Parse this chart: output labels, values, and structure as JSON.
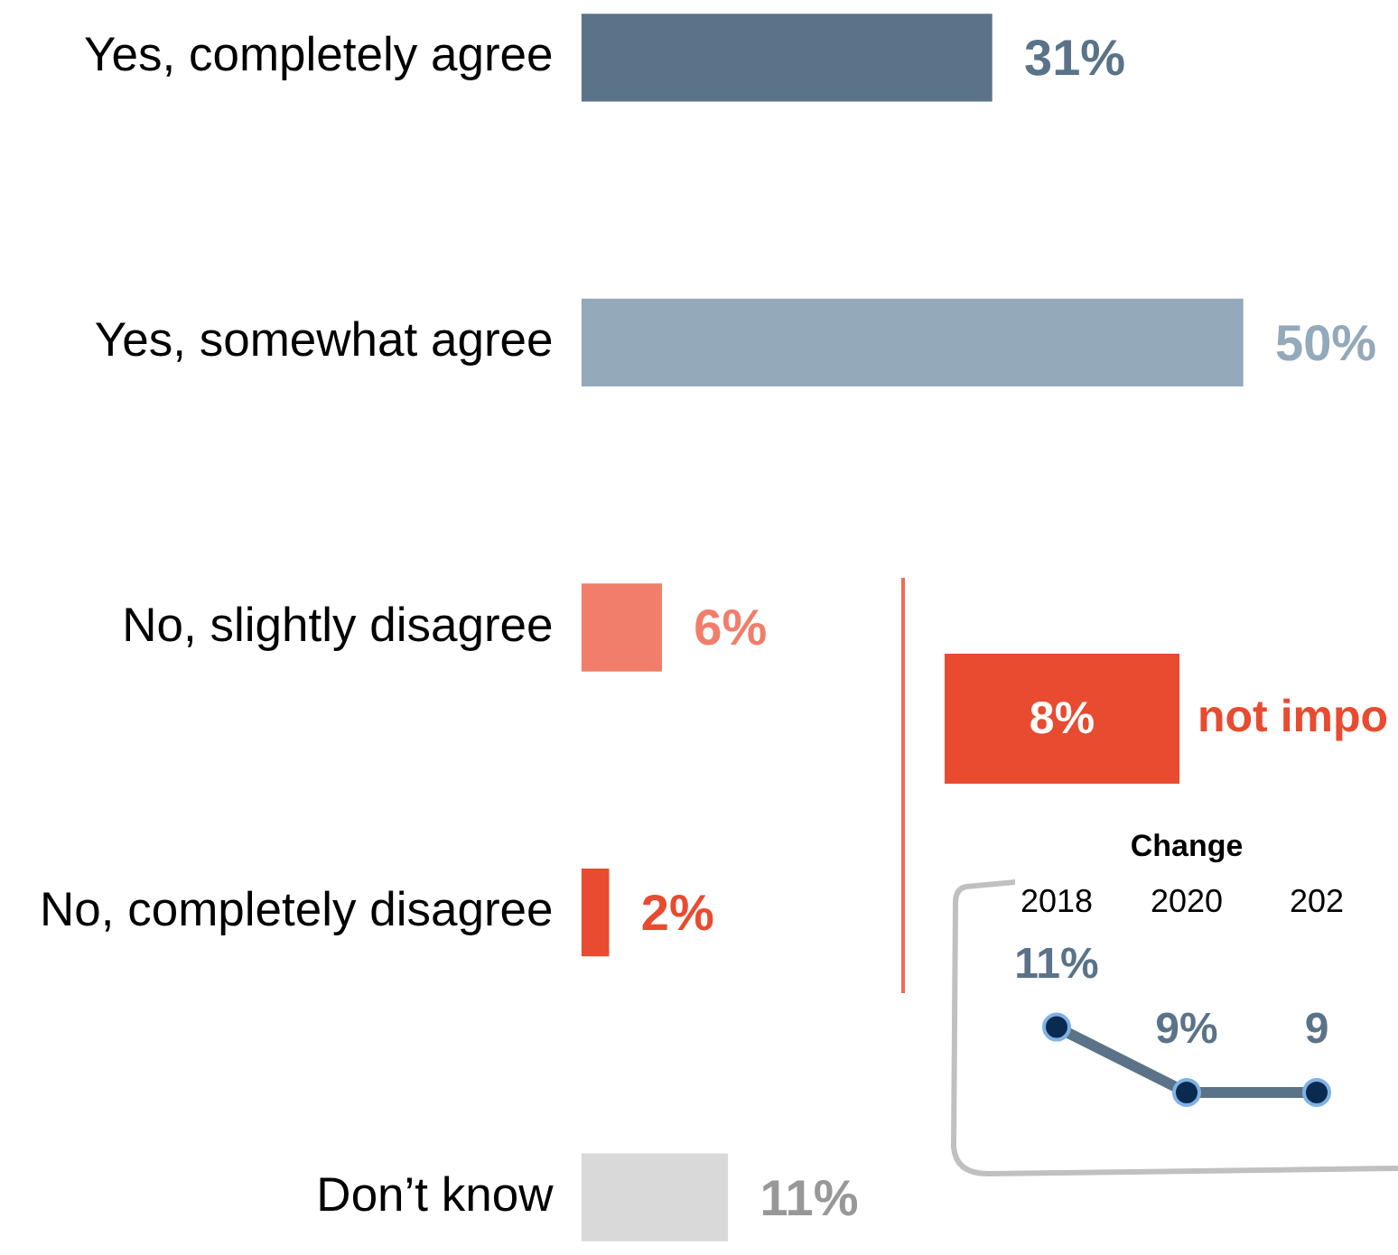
{
  "chart_data": [
    {
      "type": "bar",
      "orientation": "horizontal",
      "categories": [
        "Yes, completely agree",
        "Yes, somewhat agree",
        "No, slightly disagree",
        "No, completely disagree",
        "Don’t know"
      ],
      "values": [
        31,
        50,
        6,
        2,
        11
      ],
      "colors": [
        "#5a7389",
        "#94a9ba",
        "#f07e6a",
        "#e84b30",
        "#d9d9d9"
      ],
      "value_labels": [
        "31%",
        "50%",
        "6%",
        "2%",
        "11%"
      ],
      "tick_labels": "y"
    },
    {
      "type": "other",
      "annotations": [
        "8%",
        "not impo"
      ]
    },
    {
      "type": "line",
      "title": "Change",
      "categories": [
        "2018",
        "2020",
        "202"
      ],
      "series": [
        {
          "color": "#5a7389",
          "values": [
            11,
            9,
            9
          ],
          "value_labels": [
            "11%",
            "9%",
            "9"
          ]
        }
      ],
      "marker": "circle",
      "tick_labels": "x"
    }
  ]
}
